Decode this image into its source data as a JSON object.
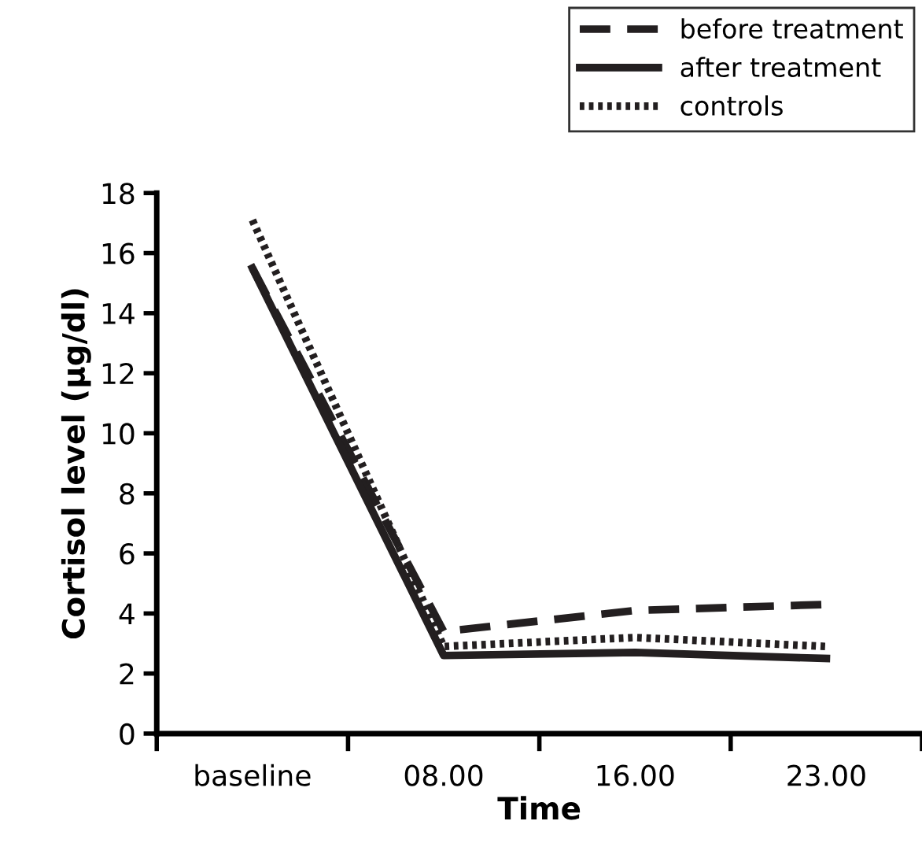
{
  "chart_data": {
    "type": "line",
    "xlabel": "Time",
    "ylabel": "Cortisol level (µg/dl)",
    "categories": [
      "baseline",
      "08.00",
      "16.00",
      "23.00"
    ],
    "series": [
      {
        "name": "before treatment",
        "color": "#231f20",
        "line_style": "dashed",
        "values": [
          15.5,
          3.4,
          4.1,
          4.3
        ]
      },
      {
        "name": "after treatment",
        "color": "#231f20",
        "line_style": "solid",
        "values": [
          15.5,
          2.6,
          2.7,
          2.5
        ]
      },
      {
        "name": "controls",
        "color": "#231f20",
        "line_style": "dotted",
        "values": [
          17.1,
          2.9,
          3.2,
          2.9
        ]
      }
    ],
    "ylim": [
      0,
      18
    ],
    "yticks": [
      0,
      2,
      4,
      6,
      8,
      10,
      12,
      14,
      16,
      18
    ],
    "grid": false,
    "legend": "top right",
    "marker": "none"
  }
}
